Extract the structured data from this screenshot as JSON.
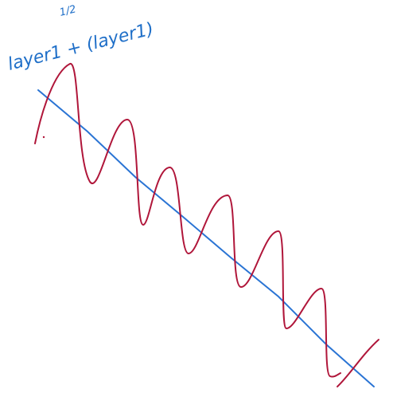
{
  "annotation": {
    "text": "layer1 + (layer1)",
    "exponent": "1/2"
  }
}
